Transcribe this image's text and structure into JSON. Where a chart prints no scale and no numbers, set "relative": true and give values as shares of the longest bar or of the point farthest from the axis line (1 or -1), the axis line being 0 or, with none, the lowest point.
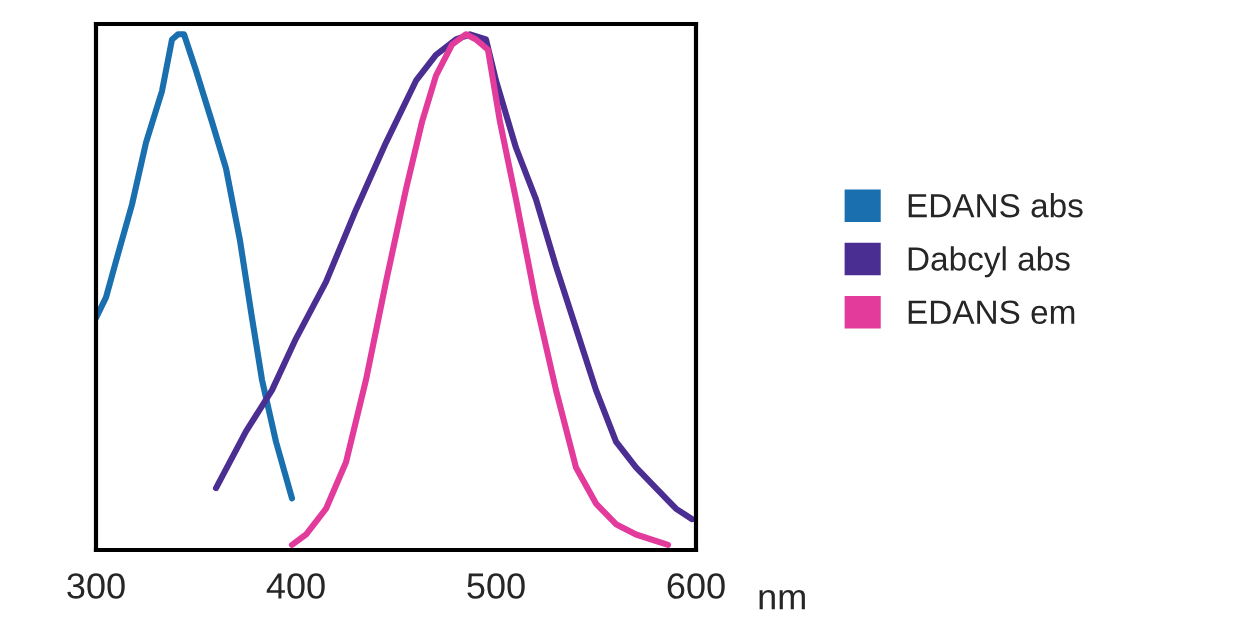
{
  "chart_data": {
    "type": "line",
    "relative": true,
    "xlabel": "nm",
    "xlim": [
      300,
      600
    ],
    "xticks": [
      300,
      400,
      500,
      600
    ],
    "grid": false,
    "legend": "right",
    "tick_labels": "x",
    "line_style": "solid",
    "marker": "none",
    "series": [
      {
        "name": "EDANS abs",
        "color": "#1a6faf",
        "x": [
          300,
          305,
          310,
          318,
          325,
          333,
          338,
          341,
          344,
          350,
          358,
          365,
          372,
          378,
          383,
          390,
          398
        ],
        "values": [
          0.45,
          0.49,
          0.56,
          0.67,
          0.79,
          0.89,
          0.99,
          1.0,
          1.0,
          0.93,
          0.83,
          0.74,
          0.6,
          0.45,
          0.33,
          0.21,
          0.1
        ]
      },
      {
        "name": "Dabcyl abs",
        "color": "#4b2e92",
        "x": [
          360,
          375,
          388,
          400,
          415,
          430,
          445,
          460,
          470,
          480,
          487,
          495,
          500,
          510,
          520,
          530,
          540,
          550,
          560,
          570,
          580,
          590,
          598
        ],
        "values": [
          0.12,
          0.23,
          0.31,
          0.41,
          0.52,
          0.66,
          0.79,
          0.91,
          0.96,
          0.99,
          1.0,
          0.99,
          0.91,
          0.78,
          0.68,
          0.55,
          0.43,
          0.31,
          0.21,
          0.16,
          0.12,
          0.08,
          0.06
        ]
      },
      {
        "name": "EDANS em",
        "color": "#e23b9c",
        "x": [
          398,
          405,
          415,
          425,
          435,
          445,
          455,
          463,
          470,
          478,
          485,
          490,
          496,
          502,
          510,
          520,
          530,
          540,
          550,
          560,
          570,
          586
        ],
        "values": [
          0.01,
          0.03,
          0.08,
          0.17,
          0.33,
          0.52,
          0.7,
          0.83,
          0.92,
          0.98,
          1.0,
          0.99,
          0.97,
          0.83,
          0.68,
          0.48,
          0.31,
          0.16,
          0.09,
          0.05,
          0.03,
          0.01
        ]
      }
    ]
  }
}
